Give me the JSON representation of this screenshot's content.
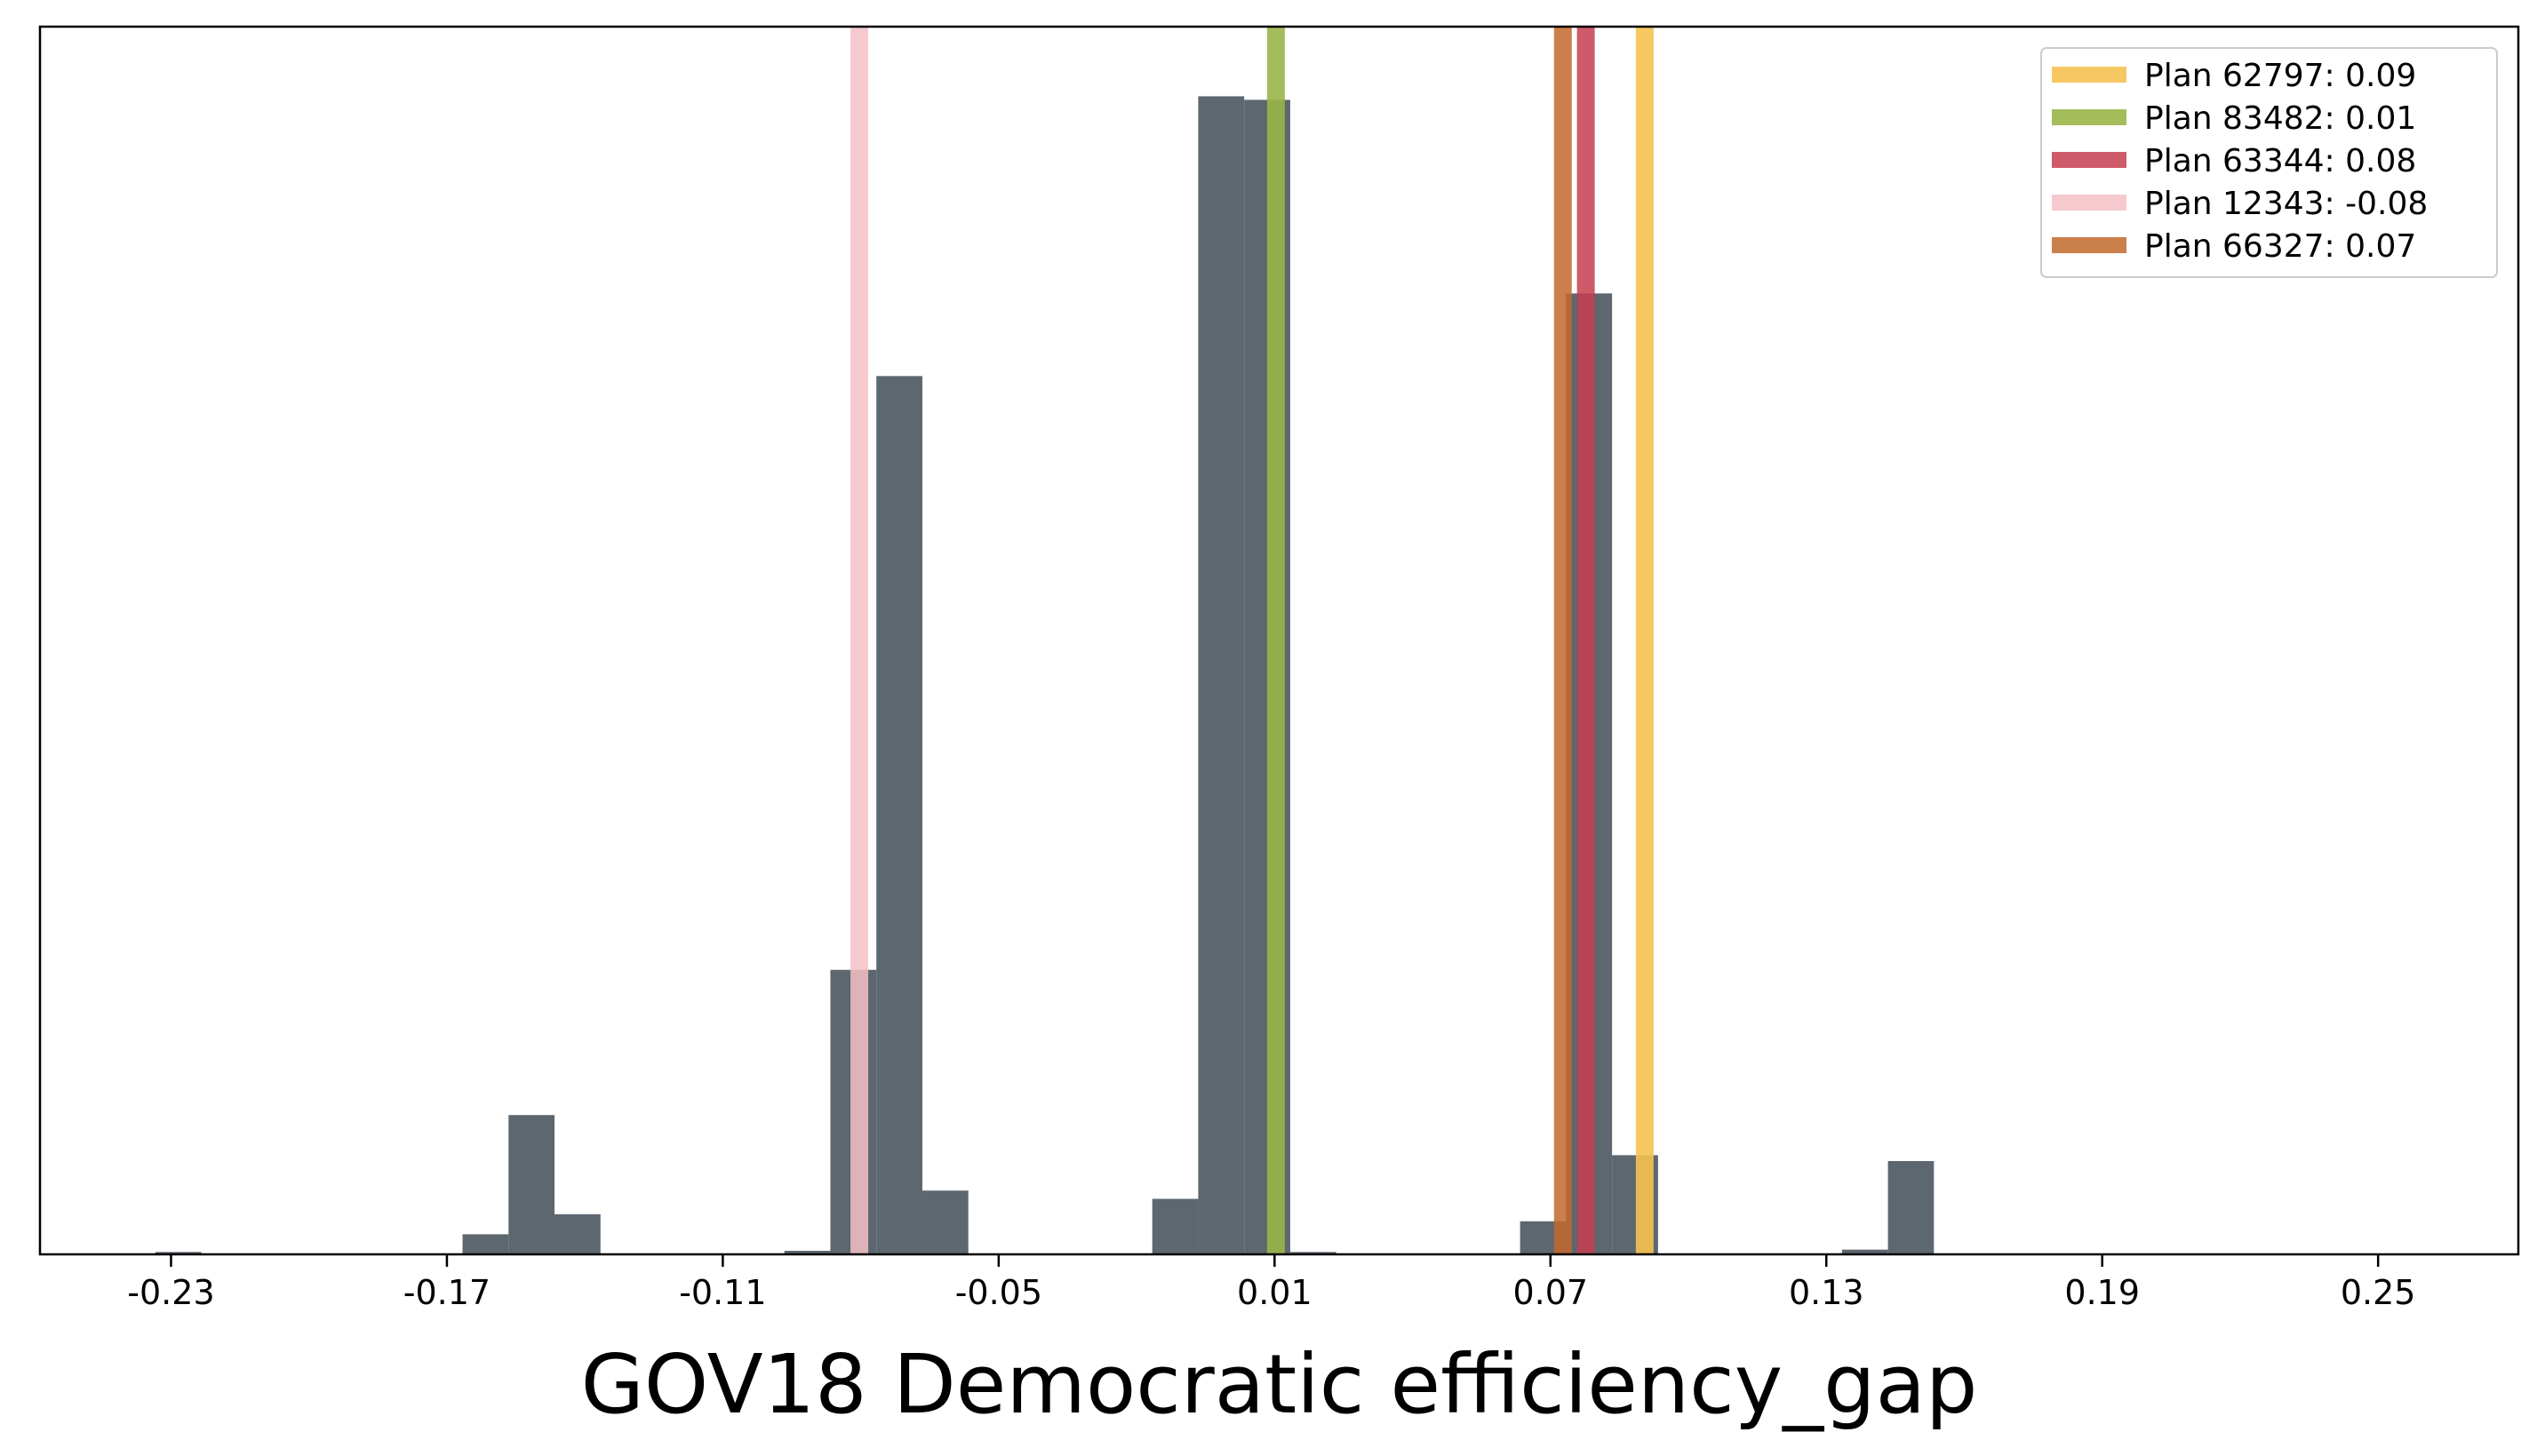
{
  "chart_data": {
    "type": "histogram",
    "title": "",
    "xlabel": "GOV18 Democratic efficiency_gap",
    "ylabel": "",
    "xlim": [
      -0.2585,
      0.2805
    ],
    "ylim": [
      0,
      1.04
    ],
    "xticks": [
      -0.23,
      -0.17,
      -0.11,
      -0.05,
      0.01,
      0.07,
      0.13,
      0.19,
      0.25
    ],
    "xtick_labels": [
      "-0.23",
      "-0.17",
      "-0.11",
      "-0.05",
      "0.01",
      "0.07",
      "0.13",
      "0.19",
      "0.25"
    ],
    "yticks_visible": false,
    "histogram_color": "#5c6770",
    "bins": [
      {
        "x0": -0.2334,
        "x1": -0.2234,
        "height": 0.002
      },
      {
        "x0": -0.1666,
        "x1": -0.1566,
        "height": 0.017
      },
      {
        "x0": -0.1566,
        "x1": -0.1466,
        "height": 0.118
      },
      {
        "x0": -0.1466,
        "x1": -0.1366,
        "height": 0.034
      },
      {
        "x0": -0.0966,
        "x1": -0.0866,
        "height": 0.003
      },
      {
        "x0": -0.0866,
        "x1": -0.0766,
        "height": 0.241
      },
      {
        "x0": -0.0766,
        "x1": -0.0666,
        "height": 0.744
      },
      {
        "x0": -0.0666,
        "x1": -0.0566,
        "height": 0.054
      },
      {
        "x0": -0.0166,
        "x1": -0.0066,
        "height": 0.047
      },
      {
        "x0": -0.0066,
        "x1": 0.0034,
        "height": 0.981
      },
      {
        "x0": 0.0034,
        "x1": 0.0134,
        "height": 0.978
      },
      {
        "x0": 0.0134,
        "x1": 0.0234,
        "height": 0.002
      },
      {
        "x0": 0.0634,
        "x1": 0.0734,
        "height": 0.028
      },
      {
        "x0": 0.0734,
        "x1": 0.0834,
        "height": 0.814
      },
      {
        "x0": 0.0834,
        "x1": 0.0934,
        "height": 0.084
      },
      {
        "x0": 0.1334,
        "x1": 0.1434,
        "height": 0.004
      },
      {
        "x0": 0.1434,
        "x1": 0.1534,
        "height": 0.079
      }
    ],
    "series": [
      {
        "name": "Plan 62797: 0.09",
        "value": 0.0905,
        "color": "#f5c252",
        "alpha": 0.9
      },
      {
        "name": "Plan 83482: 0.01",
        "value": 0.0103,
        "color": "#9ab547",
        "alpha": 0.9
      },
      {
        "name": "Plan 63344: 0.08",
        "value": 0.0777,
        "color": "#c53e4f",
        "alpha": 0.85
      },
      {
        "name": "Plan 12343: -0.08",
        "value": -0.0803,
        "color": "#f5c0c6",
        "alpha": 0.85
      },
      {
        "name": "Plan 66327: 0.07",
        "value": 0.0727,
        "color": "#c2692b",
        "alpha": 0.85
      }
    ],
    "legend_position": "top-right",
    "grid": false
  }
}
